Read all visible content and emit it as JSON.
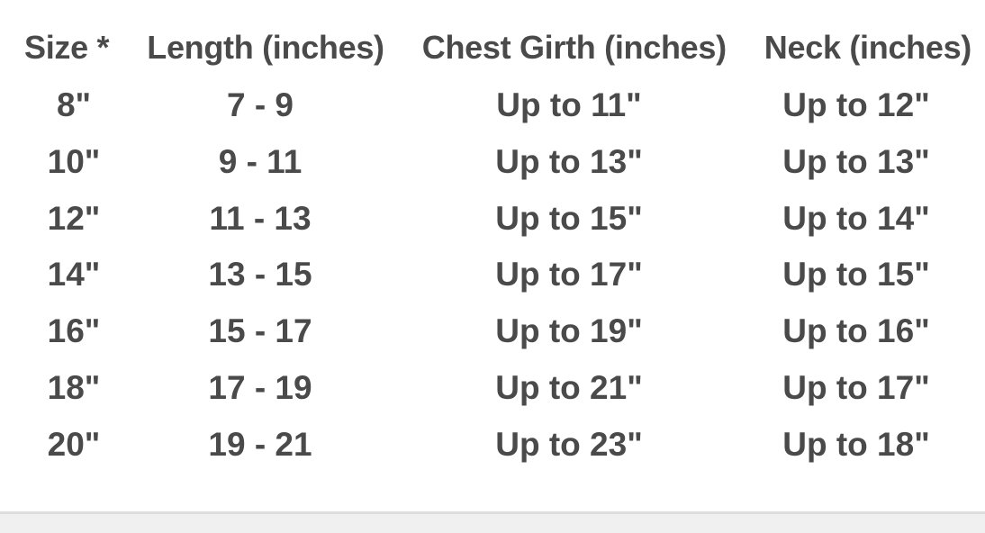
{
  "table": {
    "headers": [
      "Size *",
      "Length (inches)",
      "Chest Girth (inches)",
      "Neck (inches)"
    ],
    "rows": [
      [
        "8\"",
        "7 - 9",
        "Up to 11\"",
        "Up to 12\""
      ],
      [
        "10\"",
        "9 - 11",
        "Up to 13\"",
        "Up to 13\""
      ],
      [
        "12\"",
        "11 - 13",
        "Up to 15\"",
        "Up to 14\""
      ],
      [
        "14\"",
        "13 - 15",
        "Up to 17\"",
        "Up to 15\""
      ],
      [
        "16\"",
        "15 - 17",
        "Up to 19\"",
        "Up to 16\""
      ],
      [
        "18\"",
        "17 - 19",
        "Up to 21\"",
        "Up to 17\""
      ],
      [
        "20\"",
        "19 - 21",
        "Up to 23\"",
        "Up to 18\""
      ]
    ]
  },
  "colors": {
    "text": "#4a4a4a",
    "footer": "#f0f0f0"
  }
}
